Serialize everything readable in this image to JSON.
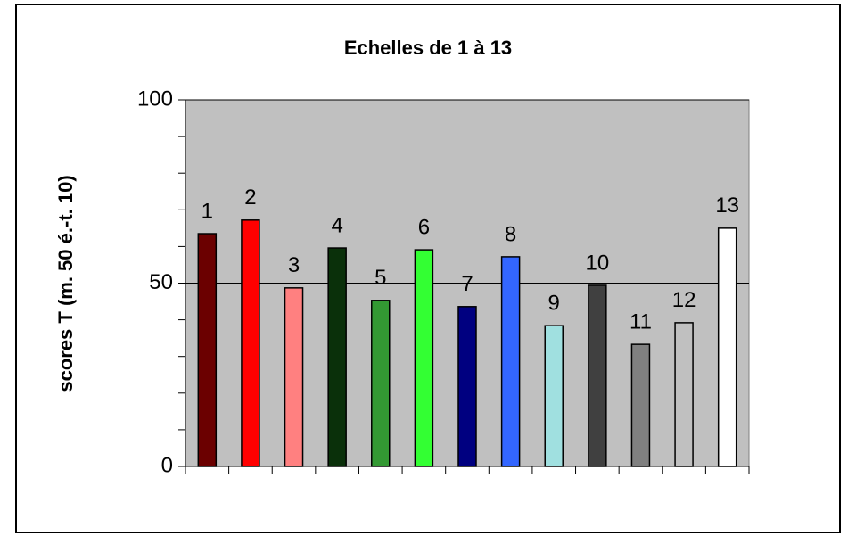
{
  "chart_data": {
    "type": "bar",
    "title": "Echelles de 1 à 13",
    "y_label": "scores T (m. 50 é.-t. 10)",
    "categories": [
      "1",
      "2",
      "3",
      "4",
      "5",
      "6",
      "7",
      "8",
      "9",
      "10",
      "11",
      "12",
      "13"
    ],
    "values": [
      63.5,
      67.2,
      48.7,
      59.6,
      45.3,
      59.1,
      43.6,
      57.2,
      38.4,
      49.4,
      33.3,
      39.2,
      65.0
    ],
    "colors": [
      "#6b0000",
      "#ff0000",
      "#ff8080",
      "#0a300a",
      "#339933",
      "#33ff33",
      "#000080",
      "#3366ff",
      "#a0e0e0",
      "#404040",
      "#808080",
      "#c0c0c0",
      "#ffffff"
    ],
    "ylim": [
      0,
      100
    ],
    "yticks": [
      0,
      50,
      100
    ],
    "yminor_ticks": [
      10,
      20,
      30,
      40,
      60,
      70,
      80,
      90
    ],
    "grid": true,
    "plot_background": "#c0c0c0"
  }
}
